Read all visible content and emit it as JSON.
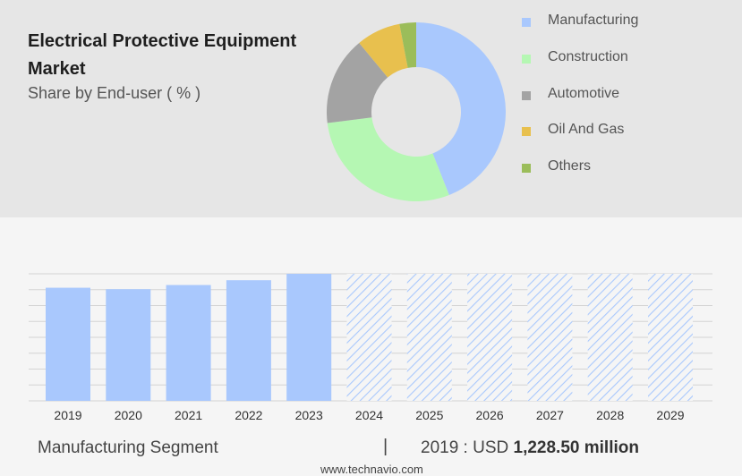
{
  "header": {
    "title": "Electrical Protective Equipment Market",
    "subtitle": "Share by End-user ( % )"
  },
  "colors": {
    "manufacturing": "#a9c8fd",
    "construction": "#b5f7b3",
    "automotive": "#a3a3a3",
    "oil_and_gas": "#e8c04e",
    "others": "#9bbd5a",
    "forecast_hatch": "#a9c8fd"
  },
  "chart_data": [
    {
      "type": "pie",
      "variant": "donut",
      "legend_position": "right",
      "categories": [
        "Manufacturing",
        "Construction",
        "Automotive",
        "Oil And Gas",
        "Others"
      ],
      "values": [
        44,
        29,
        16,
        8,
        3
      ],
      "unit": "%"
    },
    {
      "type": "bar",
      "categories": [
        "2019",
        "2020",
        "2021",
        "2022",
        "2023",
        "2024",
        "2025",
        "2026",
        "2027",
        "2028",
        "2029"
      ],
      "values": [
        1228.5,
        1213,
        1258,
        1310,
        1380,
        null,
        null,
        null,
        null,
        null,
        null
      ],
      "forecast_years": [
        "2024",
        "2025",
        "2026",
        "2027",
        "2028",
        "2029"
      ],
      "ylim": [
        0,
        1380
      ],
      "grid": true,
      "unit": "USD million"
    }
  ],
  "footer": {
    "segment": "Manufacturing Segment",
    "separator": "|",
    "value_prefix": "2019 : USD",
    "value_amount": "1,228.50 million",
    "brand": "www.technavio.com"
  }
}
